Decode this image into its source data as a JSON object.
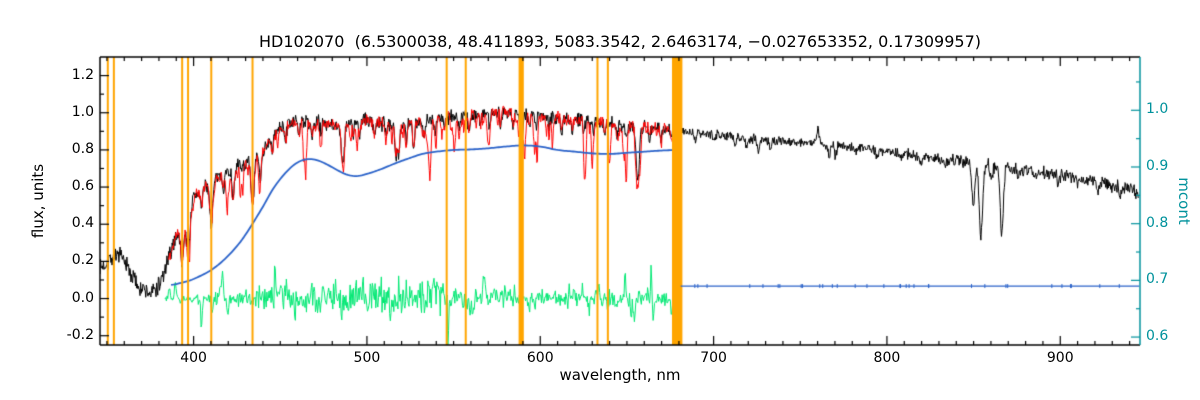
{
  "title": "HD102070  (6.5300038, 48.411893, 5083.3542, 2.6463174, −0.027653352, 0.17309957)",
  "title_parameters": [
    6.5300038,
    48.411893,
    5083.3542,
    2.6463174,
    -0.027653352,
    0.17309957
  ],
  "star_id": "HD102070",
  "axes": {
    "x": {
      "label": "wavelength, nm",
      "min": 346,
      "max": 946,
      "major_ticks": [
        400,
        500,
        600,
        700,
        800,
        900
      ],
      "tick_labels": [
        "400",
        "500",
        "600",
        "700",
        "800",
        "900"
      ],
      "minor_step": 10
    },
    "y_left": {
      "label": "flux, units",
      "min": -0.25,
      "max": 1.3,
      "major_ticks": [
        1.2,
        1.0,
        0.8,
        0.6,
        0.4,
        0.2,
        0.0,
        -0.2
      ],
      "tick_labels": [
        "1.2",
        "1.0",
        "0.8",
        "0.6",
        "0.4",
        "0.2",
        "0.0",
        "-0.2"
      ],
      "minor_step": 0.1,
      "color": "#000000"
    },
    "y_right": {
      "label": "mcont",
      "min": 0.586,
      "max": 1.094,
      "major_ticks": [
        1.0,
        0.9,
        0.8,
        0.7,
        0.6
      ],
      "tick_labels": [
        "1.0",
        "0.9",
        "0.8",
        "0.7",
        "0.6"
      ],
      "minor_step": 0.05,
      "color": "#00929c"
    }
  },
  "chart_data": {
    "type": "line",
    "title": "HD102070  (6.5300038, 48.411893, 5083.3542, 2.6463174, −0.027653352, 0.17309957)",
    "xlabel": "wavelength, nm",
    "ylabel_left": "flux, units",
    "ylabel_right": "mcont",
    "xlim": [
      346,
      946
    ],
    "ylim_left": [
      -0.25,
      1.3
    ],
    "ylim_right": [
      0.586,
      1.094
    ],
    "grid": false,
    "legend": "none",
    "series": [
      {
        "name": "observed_spectrum",
        "color": "#000000",
        "axis": "left",
        "x_range": [
          346,
          945.5
        ],
        "step": 0.33,
        "seed": 7,
        "noise": {
          "uv": 0.045,
          "base": 0.034,
          "nir": 0.02,
          "nir_growth": 0.013
        },
        "envelope_anchors": [
          [
            346,
            0.16
          ],
          [
            351,
            0.21
          ],
          [
            356,
            0.235
          ],
          [
            361,
            0.18
          ],
          [
            366,
            0.1
          ],
          [
            371,
            0.045
          ],
          [
            376,
            0.035
          ],
          [
            381,
            0.09
          ],
          [
            386,
            0.22
          ],
          [
            390,
            0.34
          ],
          [
            394,
            0.44
          ],
          [
            398,
            0.52
          ],
          [
            402,
            0.565
          ],
          [
            406,
            0.6
          ],
          [
            410,
            0.625
          ],
          [
            415,
            0.655
          ],
          [
            420,
            0.685
          ],
          [
            425,
            0.705
          ],
          [
            430,
            0.725
          ],
          [
            435,
            0.755
          ],
          [
            440,
            0.8
          ],
          [
            445,
            0.865
          ],
          [
            450,
            0.915
          ],
          [
            456,
            0.945
          ],
          [
            462,
            0.955
          ],
          [
            468,
            0.945
          ],
          [
            474,
            0.95
          ],
          [
            480,
            0.94
          ],
          [
            486,
            0.925
          ],
          [
            492,
            0.95
          ],
          [
            498,
            0.96
          ],
          [
            505,
            0.95
          ],
          [
            512,
            0.935
          ],
          [
            519,
            0.93
          ],
          [
            526,
            0.945
          ],
          [
            533,
            0.955
          ],
          [
            540,
            0.97
          ],
          [
            548,
            0.98
          ],
          [
            556,
            0.985
          ],
          [
            564,
            0.995
          ],
          [
            572,
            1.0
          ],
          [
            580,
            1.005
          ],
          [
            588,
            0.995
          ],
          [
            596,
            0.985
          ],
          [
            604,
            0.98
          ],
          [
            612,
            0.972
          ],
          [
            620,
            0.962
          ],
          [
            628,
            0.955
          ],
          [
            636,
            0.948
          ],
          [
            644,
            0.94
          ],
          [
            652,
            0.932
          ],
          [
            660,
            0.923
          ],
          [
            668,
            0.915
          ],
          [
            676,
            0.908
          ],
          [
            684,
            0.9
          ],
          [
            695,
            0.888
          ],
          [
            706,
            0.877
          ],
          [
            718,
            0.866
          ],
          [
            730,
            0.855
          ],
          [
            742,
            0.846
          ],
          [
            752,
            0.84
          ],
          [
            758,
            0.845
          ],
          [
            764,
            0.832
          ],
          [
            776,
            0.82
          ],
          [
            788,
            0.806
          ],
          [
            800,
            0.79
          ],
          [
            812,
            0.775
          ],
          [
            824,
            0.76
          ],
          [
            836,
            0.745
          ],
          [
            848,
            0.732
          ],
          [
            856,
            0.722
          ],
          [
            866,
            0.71
          ],
          [
            878,
            0.695
          ],
          [
            890,
            0.678
          ],
          [
            902,
            0.66
          ],
          [
            914,
            0.64
          ],
          [
            926,
            0.618
          ],
          [
            936,
            0.596
          ],
          [
            945.5,
            0.575
          ]
        ]
      },
      {
        "name": "template_fit",
        "color": "#ff0000",
        "axis": "left",
        "x_range": [
          385.5,
          680.5
        ],
        "step": 0.33,
        "seed": 11,
        "noise": 0.028,
        "envelope_anchors": [
          [
            385,
            0.2
          ],
          [
            390,
            0.34
          ],
          [
            394,
            0.44
          ],
          [
            398,
            0.52
          ],
          [
            402,
            0.565
          ],
          [
            406,
            0.6
          ],
          [
            410,
            0.625
          ],
          [
            415,
            0.655
          ],
          [
            420,
            0.685
          ],
          [
            425,
            0.705
          ],
          [
            430,
            0.725
          ],
          [
            435,
            0.755
          ],
          [
            440,
            0.8
          ],
          [
            445,
            0.865
          ],
          [
            450,
            0.915
          ],
          [
            456,
            0.945
          ],
          [
            462,
            0.955
          ],
          [
            468,
            0.945
          ],
          [
            474,
            0.95
          ],
          [
            480,
            0.94
          ],
          [
            486,
            0.925
          ],
          [
            492,
            0.95
          ],
          [
            498,
            0.96
          ],
          [
            505,
            0.95
          ],
          [
            512,
            0.935
          ],
          [
            519,
            0.93
          ],
          [
            526,
            0.945
          ],
          [
            533,
            0.955
          ],
          [
            540,
            0.97
          ],
          [
            548,
            0.98
          ],
          [
            556,
            0.985
          ],
          [
            564,
            0.995
          ],
          [
            572,
            1.0
          ],
          [
            580,
            1.005
          ],
          [
            588,
            0.995
          ],
          [
            596,
            0.985
          ],
          [
            604,
            0.98
          ],
          [
            612,
            0.972
          ],
          [
            620,
            0.962
          ],
          [
            628,
            0.955
          ],
          [
            636,
            0.948
          ],
          [
            644,
            0.94
          ],
          [
            652,
            0.932
          ],
          [
            660,
            0.923
          ],
          [
            668,
            0.915
          ],
          [
            676,
            0.908
          ],
          [
            680.5,
            0.905
          ]
        ]
      },
      {
        "name": "fit_residual",
        "color": "#00e873",
        "axis": "left",
        "x_range": [
          383.5,
          680
        ],
        "step": 0.4,
        "seed": 77,
        "spike_seed": 23,
        "spike_count": 48,
        "center": 0.0,
        "noise_envelope": [
          [
            383,
            0.012
          ],
          [
            395,
            0.02
          ],
          [
            410,
            0.03
          ],
          [
            430,
            0.045
          ],
          [
            450,
            0.06
          ],
          [
            470,
            0.07
          ],
          [
            490,
            0.08
          ],
          [
            510,
            0.085
          ],
          [
            530,
            0.08
          ],
          [
            550,
            0.055
          ],
          [
            570,
            0.045
          ],
          [
            590,
            0.04
          ],
          [
            610,
            0.035
          ],
          [
            630,
            0.035
          ],
          [
            650,
            0.04
          ],
          [
            670,
            0.03
          ],
          [
            680,
            0.025
          ]
        ]
      },
      {
        "name": "mcont",
        "color": "#2a62c9",
        "axis": "right",
        "anchors": [
          [
            387,
            0.692
          ],
          [
            392,
            0.695
          ],
          [
            398,
            0.7
          ],
          [
            404,
            0.708
          ],
          [
            410,
            0.718
          ],
          [
            416,
            0.732
          ],
          [
            422,
            0.75
          ],
          [
            428,
            0.772
          ],
          [
            434,
            0.8
          ],
          [
            440,
            0.83
          ],
          [
            446,
            0.862
          ],
          [
            452,
            0.886
          ],
          [
            458,
            0.904
          ],
          [
            464,
            0.913
          ],
          [
            470,
            0.913
          ],
          [
            476,
            0.906
          ],
          [
            482,
            0.896
          ],
          [
            488,
            0.887
          ],
          [
            494,
            0.884
          ],
          [
            500,
            0.888
          ],
          [
            508,
            0.896
          ],
          [
            516,
            0.906
          ],
          [
            524,
            0.915
          ],
          [
            532,
            0.923
          ],
          [
            540,
            0.927
          ],
          [
            550,
            0.93
          ],
          [
            560,
            0.931
          ],
          [
            570,
            0.933
          ],
          [
            580,
            0.936
          ],
          [
            590,
            0.938
          ],
          [
            600,
            0.936
          ],
          [
            610,
            0.93
          ],
          [
            620,
            0.927
          ],
          [
            630,
            0.924
          ],
          [
            640,
            0.923
          ],
          [
            650,
            0.925
          ],
          [
            660,
            0.927
          ],
          [
            670,
            0.929
          ],
          [
            680,
            0.93
          ]
        ]
      },
      {
        "name": "mcont_continuum",
        "color": "#2a62c9",
        "axis": "right",
        "x_range": [
          681,
          945.5
        ],
        "value": 0.69,
        "marker_count": 34,
        "seed": 41
      }
    ],
    "absorption_lines": [
      [
        393.4,
        0.52,
        1.5
      ],
      [
        396.9,
        0.48,
        1.5
      ],
      [
        404.6,
        0.17,
        0.8
      ],
      [
        410.2,
        0.36,
        1.2
      ],
      [
        417.2,
        0.1,
        0.7
      ],
      [
        422.7,
        0.22,
        0.9
      ],
      [
        434.0,
        0.34,
        1.2
      ],
      [
        438.4,
        0.17,
        0.9
      ],
      [
        445.5,
        0.1,
        0.7
      ],
      [
        453.1,
        0.09,
        0.7
      ],
      [
        460.9,
        0.08,
        0.7
      ],
      [
        468.3,
        0.08,
        0.7
      ],
      [
        473.6,
        0.07,
        0.7
      ],
      [
        486.1,
        0.24,
        1.1
      ],
      [
        492.1,
        0.08,
        0.7
      ],
      [
        495.8,
        0.09,
        0.7
      ],
      [
        504.3,
        0.08,
        0.7
      ],
      [
        511.2,
        0.07,
        0.7
      ],
      [
        516.8,
        0.16,
        0.8
      ],
      [
        518.4,
        0.17,
        0.8
      ],
      [
        522.8,
        0.09,
        0.7
      ],
      [
        527.0,
        0.16,
        0.8
      ],
      [
        532.9,
        0.09,
        0.7
      ],
      [
        539.4,
        0.08,
        0.7
      ],
      [
        544.7,
        0.07,
        0.6
      ],
      [
        553.2,
        0.08,
        0.7
      ],
      [
        558.8,
        0.09,
        0.7
      ],
      [
        565.5,
        0.07,
        0.6
      ],
      [
        570.8,
        0.07,
        0.6
      ],
      [
        577.1,
        0.08,
        0.6
      ],
      [
        584.4,
        0.07,
        0.6
      ],
      [
        589.2,
        0.21,
        1.0
      ],
      [
        593.8,
        0.06,
        0.6
      ],
      [
        597.6,
        0.07,
        0.6
      ],
      [
        605.1,
        0.06,
        0.6
      ],
      [
        612.3,
        0.08,
        0.7
      ],
      [
        618.6,
        0.07,
        0.6
      ],
      [
        625.4,
        0.07,
        0.6
      ],
      [
        630.7,
        0.08,
        0.6
      ],
      [
        637.3,
        0.06,
        0.6
      ],
      [
        644.2,
        0.07,
        0.6
      ],
      [
        649.9,
        0.08,
        0.6
      ],
      [
        656.3,
        0.3,
        1.3
      ],
      [
        663.1,
        0.06,
        0.6
      ],
      [
        669.8,
        0.07,
        0.6
      ],
      [
        675.9,
        0.06,
        0.6
      ]
    ],
    "nir_lines": [
      [
        689.5,
        0.05,
        0.8
      ],
      [
        700.2,
        0.05,
        0.8
      ],
      [
        712.4,
        0.05,
        0.9
      ],
      [
        719.1,
        0.06,
        0.9
      ],
      [
        725.8,
        0.08,
        1.0
      ],
      [
        733.0,
        0.05,
        0.8
      ],
      [
        760.2,
        -0.09,
        0.8
      ],
      [
        766.8,
        0.09,
        0.9
      ],
      [
        770.3,
        0.07,
        0.8
      ],
      [
        781.5,
        0.04,
        0.8
      ],
      [
        794.2,
        0.05,
        0.8
      ],
      [
        808.5,
        0.04,
        0.8
      ],
      [
        819.6,
        0.06,
        0.9
      ],
      [
        833.3,
        0.05,
        0.8
      ],
      [
        849.8,
        0.3,
        1.2
      ],
      [
        854.2,
        0.55,
        1.3
      ],
      [
        860.4,
        0.12,
        0.9
      ],
      [
        866.2,
        0.5,
        1.3
      ],
      [
        875.6,
        0.06,
        0.8
      ],
      [
        886.3,
        0.05,
        0.8
      ],
      [
        898.8,
        0.07,
        0.9
      ],
      [
        910.5,
        0.06,
        0.9
      ],
      [
        922.2,
        0.07,
        0.9
      ],
      [
        934.7,
        0.06,
        0.9
      ]
    ],
    "red_extra_lines": {
      "count": 70,
      "seed": 13,
      "range": [
        388,
        679
      ],
      "max_depth": 0.34
    },
    "vertical_lines": {
      "color": "#ffa500",
      "items": [
        {
          "nm": 350.5
        },
        {
          "nm": 354
        },
        {
          "nm": 393.4
        },
        {
          "nm": 396.8
        },
        {
          "nm": 410.2
        },
        {
          "nm": 434.0
        },
        {
          "nm": 546
        },
        {
          "nm": 557
        },
        {
          "nm": 589,
          "width_nm": 3
        },
        {
          "nm": 633
        },
        {
          "nm": 639
        },
        {
          "nm": 679,
          "width_nm": 6
        }
      ]
    }
  }
}
